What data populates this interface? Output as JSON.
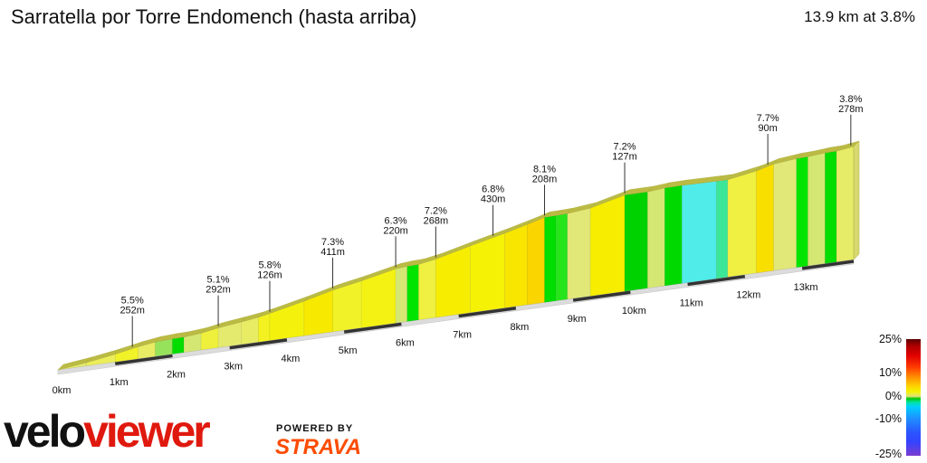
{
  "header": {
    "title": "Sarratella por Torre Endomench (hasta arriba)",
    "summary": "13.9 km at 3.8%"
  },
  "legend": {
    "labels": [
      "25%",
      "10%",
      "0%",
      "-10%",
      "-25%"
    ]
  },
  "branding": {
    "logo_part1": "velo",
    "logo_part2": "viewer",
    "powered_by": "POWERED BY",
    "strava": "STRAVA"
  },
  "colors": {
    "ramp_yellow": "#f2f200",
    "flat_green": "#00d000",
    "descent_cyan": "#5ff2e8",
    "profile_edge": "#b8b83a",
    "logo_red": "#e0190f",
    "strava_orange": "#fc4c02"
  },
  "chart_data": {
    "type": "area",
    "title": "Sarratella por Torre Endomench (hasta arriba)",
    "distance_km": 13.9,
    "average_gradient_pct": 3.8,
    "x_ticks": [
      "0km",
      "1km",
      "2km",
      "3km",
      "4km",
      "5km",
      "6km",
      "7km",
      "8km",
      "9km",
      "10km",
      "11km",
      "12km",
      "13km"
    ],
    "segment_labels": [
      {
        "km": 1.3,
        "gradient": "5.5%",
        "length": "252m"
      },
      {
        "km": 2.8,
        "gradient": "5.1%",
        "length": "292m"
      },
      {
        "km": 3.7,
        "gradient": "5.8%",
        "length": "126m"
      },
      {
        "km": 4.8,
        "gradient": "7.3%",
        "length": "411m"
      },
      {
        "km": 5.9,
        "gradient": "6.3%",
        "length": "220m"
      },
      {
        "km": 6.6,
        "gradient": "7.2%",
        "length": "268m"
      },
      {
        "km": 7.6,
        "gradient": "6.8%",
        "length": "430m"
      },
      {
        "km": 8.5,
        "gradient": "8.1%",
        "length": "208m"
      },
      {
        "km": 9.9,
        "gradient": "7.2%",
        "length": "127m"
      },
      {
        "km": 12.4,
        "gradient": "7.7%",
        "length": "90m"
      },
      {
        "km": 13.85,
        "gradient": "3.8%",
        "length": "278m"
      }
    ],
    "gradient_scale": {
      "min": -25,
      "max": 25,
      "ticks": [
        "25%",
        "10%",
        "0%",
        "-10%",
        "-25%"
      ]
    },
    "segments": [
      {
        "km": [
          0.0,
          0.5
        ],
        "grad": 3.5
      },
      {
        "km": [
          0.5,
          1.0
        ],
        "grad": 4.5
      },
      {
        "km": [
          1.0,
          1.4
        ],
        "grad": 5.5
      },
      {
        "km": [
          1.4,
          1.7
        ],
        "grad": 4.0
      },
      {
        "km": [
          1.7,
          2.0
        ],
        "grad": 1.5
      },
      {
        "km": [
          2.0,
          2.2
        ],
        "grad": 0.5
      },
      {
        "km": [
          2.2,
          2.5
        ],
        "grad": 2.5
      },
      {
        "km": [
          2.5,
          2.8
        ],
        "grad": 5.1
      },
      {
        "km": [
          2.8,
          3.2
        ],
        "grad": 3.5
      },
      {
        "km": [
          3.2,
          3.5
        ],
        "grad": 4.0
      },
      {
        "km": [
          3.5,
          3.7
        ],
        "grad": 5.8
      },
      {
        "km": [
          3.7,
          4.3
        ],
        "grad": 6.5
      },
      {
        "km": [
          4.3,
          4.8
        ],
        "grad": 7.3
      },
      {
        "km": [
          4.8,
          5.3
        ],
        "grad": 5.5
      },
      {
        "km": [
          5.3,
          5.9
        ],
        "grad": 6.3
      },
      {
        "km": [
          5.9,
          6.1
        ],
        "grad": 2.5
      },
      {
        "km": [
          6.1,
          6.3
        ],
        "grad": 0.8
      },
      {
        "km": [
          6.3,
          6.6
        ],
        "grad": 5.0
      },
      {
        "km": [
          6.6,
          7.2
        ],
        "grad": 7.2
      },
      {
        "km": [
          7.2,
          7.8
        ],
        "grad": 6.8
      },
      {
        "km": [
          7.8,
          8.2
        ],
        "grad": 7.5
      },
      {
        "km": [
          8.2,
          8.5
        ],
        "grad": 8.1
      },
      {
        "km": [
          8.5,
          8.7
        ],
        "grad": 0.5
      },
      {
        "km": [
          8.7,
          8.9
        ],
        "grad": 1.0
      },
      {
        "km": [
          8.9,
          9.3
        ],
        "grad": 3.0
      },
      {
        "km": [
          9.3,
          9.9
        ],
        "grad": 7.2
      },
      {
        "km": [
          9.9,
          10.3
        ],
        "grad": 0.0
      },
      {
        "km": [
          10.3,
          10.6
        ],
        "grad": 2.5
      },
      {
        "km": [
          10.6,
          10.9
        ],
        "grad": 0.3
      },
      {
        "km": [
          10.9,
          11.5
        ],
        "grad": -0.5
      },
      {
        "km": [
          11.5,
          11.7
        ],
        "grad": -0.2
      },
      {
        "km": [
          11.7,
          12.2
        ],
        "grad": 5.0
      },
      {
        "km": [
          12.2,
          12.5
        ],
        "grad": 7.7
      },
      {
        "km": [
          12.5,
          12.9
        ],
        "grad": 3.0
      },
      {
        "km": [
          12.9,
          13.1
        ],
        "grad": 0.8
      },
      {
        "km": [
          13.1,
          13.4
        ],
        "grad": 2.5
      },
      {
        "km": [
          13.4,
          13.6
        ],
        "grad": 0.5
      },
      {
        "km": [
          13.6,
          13.9
        ],
        "grad": 3.8
      }
    ]
  }
}
